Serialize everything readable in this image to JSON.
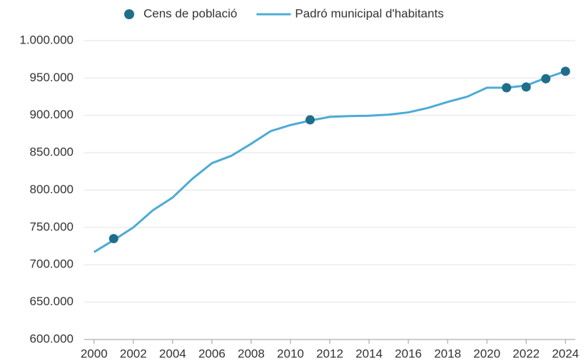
{
  "chart_data": {
    "type": "line",
    "series": [
      {
        "name": "Cens de població",
        "mark": "point",
        "color": "#1f6e8c",
        "x": [
          2001,
          2011,
          2021,
          2022,
          2023,
          2024
        ],
        "values": [
          735000,
          894000,
          937000,
          938000,
          949000,
          959000
        ]
      },
      {
        "name": "Padró municipal d'habitants",
        "mark": "line",
        "color": "#4dabd6",
        "x": [
          2000,
          2001,
          2002,
          2003,
          2004,
          2005,
          2006,
          2007,
          2008,
          2009,
          2010,
          2011,
          2012,
          2013,
          2014,
          2015,
          2016,
          2017,
          2018,
          2019,
          2020,
          2021,
          2022,
          2023,
          2024
        ],
        "values": [
          717000,
          733000,
          750000,
          773000,
          790000,
          815000,
          836000,
          846000,
          862000,
          879000,
          887000,
          893000,
          898000,
          899000,
          899500,
          901000,
          904000,
          910000,
          918000,
          925000,
          937000,
          937000,
          940000,
          950000,
          959000
        ]
      }
    ],
    "xlim": [
      1999.5,
      2024.5
    ],
    "xticks": [
      2000,
      2002,
      2004,
      2006,
      2008,
      2010,
      2012,
      2014,
      2016,
      2018,
      2020,
      2022,
      2024
    ],
    "ylim": [
      600000,
      1000000
    ],
    "yticks": [
      {
        "value": 600000,
        "label": "600.000"
      },
      {
        "value": 650000,
        "label": "650.000"
      },
      {
        "value": 700000,
        "label": "700.000"
      },
      {
        "value": 750000,
        "label": "750.000"
      },
      {
        "value": 800000,
        "label": "800.000"
      },
      {
        "value": 850000,
        "label": "850.000"
      },
      {
        "value": 900000,
        "label": "900.000"
      },
      {
        "value": 950000,
        "label": "950.000"
      },
      {
        "value": 1000000,
        "label": "1.000.000"
      }
    ],
    "grid": true,
    "legend": "top"
  }
}
